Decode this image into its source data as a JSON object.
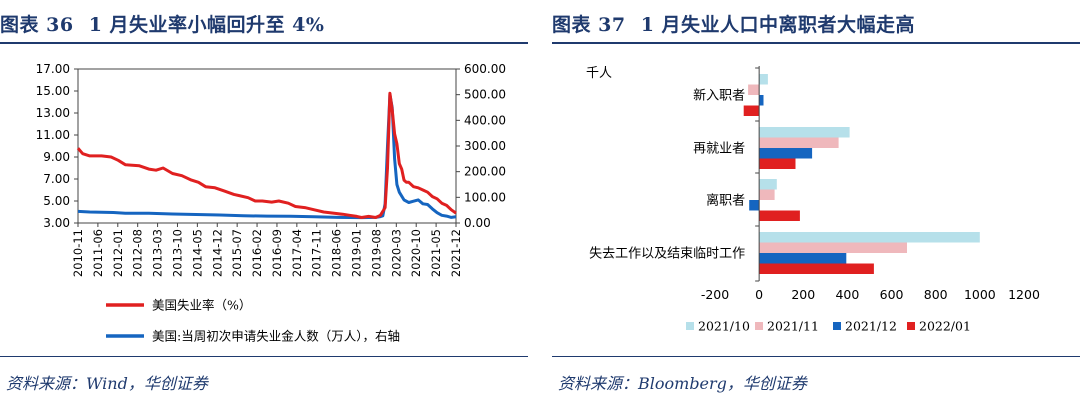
{
  "left": {
    "title_prefix": "图表 36",
    "title_text": "1 月失业率小幅回升至 4%",
    "source": "资料来源：Wind，华创证券"
  },
  "right": {
    "title_prefix": "图表 37",
    "title_text": "1 月失业人口中离职者大幅走高",
    "source": "资料来源：Bloomberg，华创证券"
  },
  "chart_data": [
    {
      "type": "line",
      "title": "1 月失业率小幅回升至 4%",
      "x_tick_labels": [
        "2010-11",
        "2011-06",
        "2012-01",
        "2012-08",
        "2013-03",
        "2013-10",
        "2014-05",
        "2014-12",
        "2015-07",
        "2016-02",
        "2016-09",
        "2017-04",
        "2017-11",
        "2018-06",
        "2019-01",
        "2019-08",
        "2020-03",
        "2020-10",
        "2021-05",
        "2021-12"
      ],
      "y_left": {
        "ylim": [
          3,
          17
        ],
        "ticks": [
          "3.00",
          "5.00",
          "7.00",
          "9.00",
          "11.00",
          "13.00",
          "15.00",
          "17.00"
        ]
      },
      "y_right": {
        "ylim": [
          0,
          600
        ],
        "ticks": [
          "0.00",
          "100.00",
          "200.00",
          "300.00",
          "400.00",
          "500.00",
          "600.00"
        ]
      },
      "series": [
        {
          "name": "美国失业率（%）",
          "axis": "left",
          "color": "#e02020",
          "points": [
            [
              0,
              9.8
            ],
            [
              2,
              9.3
            ],
            [
              5,
              9.1
            ],
            [
              10,
              9.1
            ],
            [
              14,
              9.0
            ],
            [
              17,
              8.7
            ],
            [
              20,
              8.3
            ],
            [
              26,
              8.2
            ],
            [
              30,
              7.9
            ],
            [
              33,
              7.8
            ],
            [
              36,
              8.0
            ],
            [
              40,
              7.5
            ],
            [
              44,
              7.3
            ],
            [
              48,
              6.9
            ],
            [
              51,
              6.7
            ],
            [
              54,
              6.3
            ],
            [
              58,
              6.2
            ],
            [
              62,
              5.9
            ],
            [
              66,
              5.6
            ],
            [
              68,
              5.5
            ],
            [
              72,
              5.3
            ],
            [
              75,
              5.0
            ],
            [
              78,
              5.0
            ],
            [
              82,
              4.9
            ],
            [
              85,
              5.0
            ],
            [
              89,
              4.8
            ],
            [
              92,
              4.5
            ],
            [
              96,
              4.4
            ],
            [
              100,
              4.2
            ],
            [
              104,
              4.0
            ],
            [
              108,
              3.9
            ],
            [
              112,
              3.8
            ],
            [
              115,
              3.7
            ],
            [
              118,
              3.6
            ],
            [
              120,
              3.5
            ],
            [
              123,
              3.6
            ],
            [
              126,
              3.5
            ],
            [
              128,
              3.7
            ],
            [
              130,
              4.4
            ],
            [
              131,
              8.0
            ],
            [
              132,
              14.8
            ],
            [
              133,
              13.3
            ],
            [
              134,
              11.1
            ],
            [
              135,
              10.2
            ],
            [
              136,
              8.4
            ],
            [
              137,
              7.9
            ],
            [
              138,
              6.9
            ],
            [
              139,
              6.7
            ],
            [
              140,
              6.7
            ],
            [
              142,
              6.3
            ],
            [
              144,
              6.2
            ],
            [
              146,
              6.0
            ],
            [
              148,
              5.8
            ],
            [
              150,
              5.4
            ],
            [
              152,
              5.2
            ],
            [
              154,
              4.8
            ],
            [
              156,
              4.6
            ],
            [
              158,
              4.2
            ],
            [
              160,
              3.9
            ]
          ]
        },
        {
          "name": "美国:当周初次申请失业金人数（万人），右轴",
          "axis": "right",
          "color": "#1565c0",
          "points": [
            [
              0,
              45
            ],
            [
              5,
              43
            ],
            [
              10,
              42
            ],
            [
              15,
              41
            ],
            [
              20,
              38
            ],
            [
              30,
              38
            ],
            [
              40,
              35
            ],
            [
              50,
              33
            ],
            [
              60,
              31
            ],
            [
              70,
              28
            ],
            [
              80,
              27
            ],
            [
              90,
              26
            ],
            [
              100,
              24
            ],
            [
              110,
              22
            ],
            [
              120,
              21
            ],
            [
              126,
              22
            ],
            [
              128,
              25
            ],
            [
              129,
              28
            ],
            [
              130,
              75
            ],
            [
              131,
              300
            ],
            [
              132,
              500
            ],
            [
              133,
              450
            ],
            [
              134,
              250
            ],
            [
              135,
              150
            ],
            [
              136,
              120
            ],
            [
              138,
              90
            ],
            [
              140,
              80
            ],
            [
              142,
              85
            ],
            [
              144,
              90
            ],
            [
              146,
              75
            ],
            [
              148,
              72
            ],
            [
              150,
              55
            ],
            [
              152,
              40
            ],
            [
              154,
              30
            ],
            [
              156,
              27
            ],
            [
              158,
              22
            ],
            [
              160,
              24
            ]
          ]
        }
      ],
      "legend": [
        "美国失业率（%）",
        "美国:当周初次申请失业金人数（万人），右轴"
      ]
    },
    {
      "type": "bar",
      "orientation": "horizontal",
      "title": "1 月失业人口中离职者大幅走高",
      "unit_label": "千人",
      "categories": [
        "新入职者",
        "再就业者",
        "离职者",
        "失去工作以及结束临时工作"
      ],
      "xlim": [
        -200,
        1200
      ],
      "x_ticks": [
        "-200",
        "0",
        "200",
        "400",
        "600",
        "800",
        "1000",
        "1200"
      ],
      "series": [
        {
          "name": "2021/10",
          "color": "#b6e0ea",
          "values": [
            40,
            410,
            80,
            1000
          ]
        },
        {
          "name": "2021/11",
          "color": "#efb8bc",
          "values": [
            -50,
            360,
            70,
            670
          ]
        },
        {
          "name": "2021/12",
          "color": "#1565c0",
          "values": [
            20,
            240,
            -45,
            395
          ]
        },
        {
          "name": "2022/01",
          "color": "#e02020",
          "values": [
            -70,
            165,
            185,
            520
          ]
        }
      ]
    }
  ]
}
